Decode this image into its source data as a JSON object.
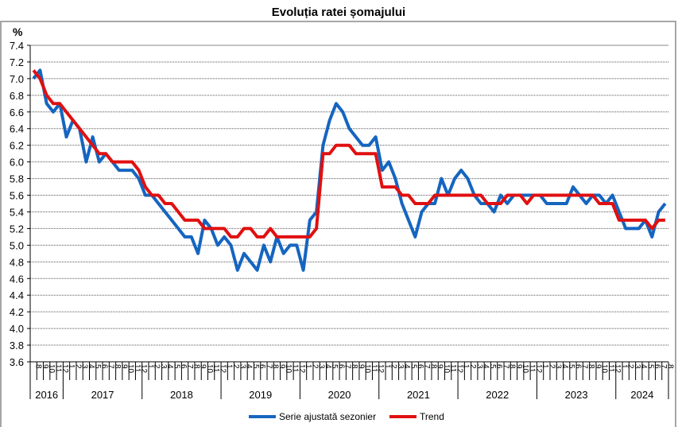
{
  "chart_data": {
    "type": "line",
    "title": "Evoluția ratei șomajului",
    "ylabel": "%",
    "ylim": [
      3.6,
      7.4
    ],
    "ytick_step": 0.2,
    "grid": true,
    "legend_position": "bottom",
    "x_months": [
      "8",
      "9",
      "10",
      "11",
      "12",
      "1",
      "2",
      "3",
      "4",
      "5",
      "6",
      "7",
      "8",
      "9",
      "10",
      "11",
      "12",
      "1",
      "2",
      "3",
      "4",
      "5",
      "6",
      "7",
      "8",
      "9",
      "10",
      "11",
      "12",
      "1",
      "2",
      "3",
      "4",
      "5",
      "6",
      "7",
      "8",
      "9",
      "10",
      "11",
      "12",
      "1",
      "2",
      "3",
      "4",
      "5",
      "6",
      "7",
      "8",
      "9",
      "10",
      "11",
      "12",
      "1",
      "2",
      "3",
      "4",
      "5",
      "6",
      "7",
      "8",
      "9",
      "10",
      "11",
      "12",
      "1",
      "2",
      "3",
      "4",
      "5",
      "6",
      "7",
      "8",
      "9",
      "10",
      "11",
      "12",
      "1",
      "2",
      "3",
      "4",
      "5",
      "6",
      "7",
      "8",
      "9",
      "10",
      "11",
      "12",
      "1",
      "2",
      "3",
      "4",
      "5",
      "6",
      "7",
      "8"
    ],
    "years": [
      "2016",
      "2017",
      "2018",
      "2019",
      "2020",
      "2021",
      "2022",
      "2023",
      "2024"
    ],
    "series": [
      {
        "name": "Serie ajustată sezonier",
        "color": "#1565c0",
        "values": [
          7.0,
          7.1,
          6.7,
          6.6,
          6.7,
          6.3,
          6.5,
          6.4,
          6.0,
          6.3,
          6.0,
          6.1,
          6.0,
          5.9,
          5.9,
          5.9,
          5.8,
          5.6,
          5.6,
          5.5,
          5.4,
          5.3,
          5.2,
          5.1,
          5.1,
          4.9,
          5.3,
          5.2,
          5.0,
          5.1,
          5.0,
          4.7,
          4.9,
          4.8,
          4.7,
          5.0,
          4.8,
          5.1,
          4.9,
          5.0,
          5.0,
          4.7,
          5.3,
          5.4,
          6.2,
          6.5,
          6.7,
          6.6,
          6.4,
          6.3,
          6.2,
          6.2,
          6.3,
          5.9,
          6.0,
          5.8,
          5.5,
          5.3,
          5.1,
          5.4,
          5.5,
          5.5,
          5.8,
          5.6,
          5.8,
          5.9,
          5.8,
          5.6,
          5.5,
          5.5,
          5.4,
          5.6,
          5.5,
          5.6,
          5.6,
          5.6,
          5.6,
          5.6,
          5.5,
          5.5,
          5.5,
          5.5,
          5.7,
          5.6,
          5.5,
          5.6,
          5.6,
          5.5,
          5.6,
          5.4,
          5.2,
          5.2,
          5.2,
          5.3,
          5.1,
          5.4,
          5.5
        ]
      },
      {
        "name": "Trend",
        "color": "#e01010",
        "values": [
          7.1,
          7.0,
          6.8,
          6.7,
          6.7,
          6.6,
          6.5,
          6.4,
          6.3,
          6.2,
          6.1,
          6.1,
          6.0,
          6.0,
          6.0,
          6.0,
          5.9,
          5.7,
          5.6,
          5.6,
          5.5,
          5.5,
          5.4,
          5.3,
          5.3,
          5.3,
          5.2,
          5.2,
          5.2,
          5.2,
          5.1,
          5.1,
          5.2,
          5.2,
          5.1,
          5.1,
          5.2,
          5.1,
          5.1,
          5.1,
          5.1,
          5.1,
          5.1,
          5.2,
          6.1,
          6.1,
          6.2,
          6.2,
          6.2,
          6.1,
          6.1,
          6.1,
          6.1,
          5.7,
          5.7,
          5.7,
          5.6,
          5.6,
          5.5,
          5.5,
          5.5,
          5.6,
          5.6,
          5.6,
          5.6,
          5.6,
          5.6,
          5.6,
          5.6,
          5.5,
          5.5,
          5.5,
          5.6,
          5.6,
          5.6,
          5.5,
          5.6,
          5.6,
          5.6,
          5.6,
          5.6,
          5.6,
          5.6,
          5.6,
          5.6,
          5.6,
          5.5,
          5.5,
          5.5,
          5.3,
          5.3,
          5.3,
          5.3,
          5.3,
          5.2,
          5.3,
          5.3
        ]
      }
    ]
  }
}
